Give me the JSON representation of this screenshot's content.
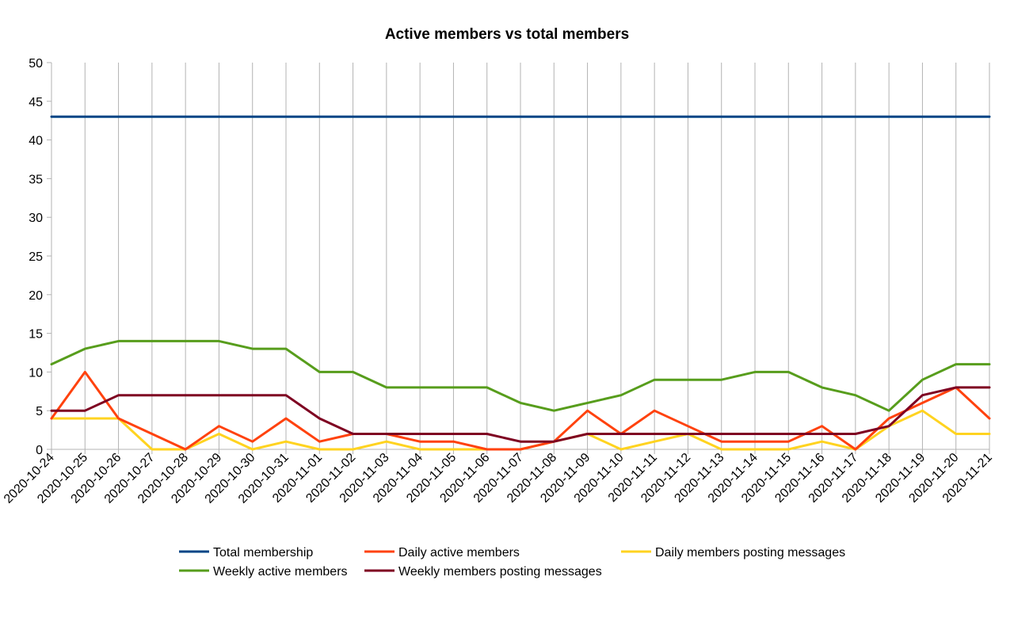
{
  "chart_data": {
    "type": "line",
    "title": "Active members vs total members",
    "xlabel": "",
    "ylabel": "",
    "ylim": [
      0,
      50
    ],
    "yticks": [
      0,
      5,
      10,
      15,
      20,
      25,
      30,
      35,
      40,
      45,
      50
    ],
    "grid": "vertical",
    "legend_position": "bottom",
    "x": [
      "2020-10-24",
      "2020-10-25",
      "2020-10-26",
      "2020-10-27",
      "2020-10-28",
      "2020-10-29",
      "2020-10-30",
      "2020-10-31",
      "2020-11-01",
      "2020-11-02",
      "2020-11-03",
      "2020-11-04",
      "2020-11-05",
      "2020-11-06",
      "2020-11-07",
      "2020-11-08",
      "2020-11-09",
      "2020-11-10",
      "2020-11-11",
      "2020-11-12",
      "2020-11-13",
      "2020-11-14",
      "2020-11-15",
      "2020-11-16",
      "2020-11-17",
      "2020-11-18",
      "2020-11-19",
      "2020-11-20",
      "2020-11-21"
    ],
    "series": [
      {
        "name": "Total membership",
        "color": "#004586",
        "values": [
          43,
          43,
          43,
          43,
          43,
          43,
          43,
          43,
          43,
          43,
          43,
          43,
          43,
          43,
          43,
          43,
          43,
          43,
          43,
          43,
          43,
          43,
          43,
          43,
          43,
          43,
          43,
          43,
          43
        ]
      },
      {
        "name": "Daily active members",
        "color": "#ff420e",
        "values": [
          4,
          10,
          4,
          2,
          0,
          3,
          1,
          4,
          1,
          2,
          2,
          1,
          1,
          0,
          0,
          1,
          5,
          2,
          5,
          3,
          1,
          1,
          1,
          3,
          0,
          4,
          6,
          8,
          4
        ]
      },
      {
        "name": "Daily members posting messages",
        "color": "#ffd320",
        "values": [
          4,
          4,
          4,
          0,
          0,
          2,
          0,
          1,
          0,
          0,
          1,
          0,
          0,
          0,
          0,
          1,
          2,
          0,
          1,
          2,
          0,
          0,
          0,
          1,
          0,
          3,
          5,
          2,
          2
        ]
      },
      {
        "name": "Weekly active members",
        "color": "#579d1c",
        "values": [
          11,
          13,
          14,
          14,
          14,
          14,
          13,
          13,
          10,
          10,
          8,
          8,
          8,
          8,
          6,
          5,
          6,
          7,
          9,
          9,
          9,
          10,
          10,
          8,
          7,
          5,
          9,
          11,
          11
        ]
      },
      {
        "name": "Weekly members posting messages",
        "color": "#7e0021",
        "values": [
          5,
          5,
          7,
          7,
          7,
          7,
          7,
          7,
          4,
          2,
          2,
          2,
          2,
          2,
          1,
          1,
          2,
          2,
          2,
          2,
          2,
          2,
          2,
          2,
          2,
          3,
          7,
          8,
          8
        ]
      }
    ],
    "legend_order": [
      0,
      1,
      2,
      3,
      4
    ]
  }
}
